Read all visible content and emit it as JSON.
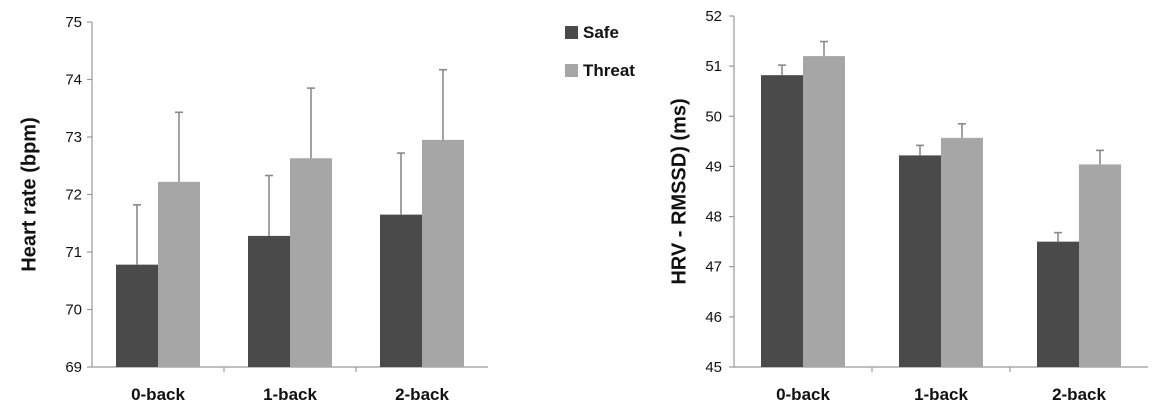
{
  "colors": {
    "safe": "#4a4a4a",
    "threat": "#a6a6a6",
    "axis": "#999999"
  },
  "legend": {
    "items": [
      "Safe",
      "Threat"
    ],
    "placement": "top-right of left chart"
  },
  "chart_data": [
    {
      "type": "bar",
      "ylabel": "Heart rate (bpm)",
      "categories": [
        "0-back",
        "1-back",
        "2-back"
      ],
      "ylim": [
        69,
        75
      ],
      "yticks": [
        69,
        70,
        71,
        72,
        73,
        74,
        75
      ],
      "grid": false,
      "series": [
        {
          "name": "Safe",
          "values": [
            70.78,
            71.28,
            71.65
          ],
          "errors": [
            1.04,
            1.05,
            1.07
          ]
        },
        {
          "name": "Threat",
          "values": [
            72.22,
            72.63,
            72.95
          ],
          "errors": [
            1.21,
            1.22,
            1.22
          ]
        }
      ]
    },
    {
      "type": "bar",
      "ylabel": "HRV - RMSSD) (ms)",
      "categories": [
        "0-back",
        "1-back",
        "2-back"
      ],
      "ylim": [
        45,
        52
      ],
      "yticks": [
        45,
        46,
        47,
        48,
        49,
        50,
        51,
        52
      ],
      "grid": false,
      "series": [
        {
          "name": "Safe",
          "values": [
            50.82,
            49.22,
            47.5
          ],
          "errors": [
            0.2,
            0.2,
            0.18
          ]
        },
        {
          "name": "Threat",
          "values": [
            51.2,
            49.57,
            49.04
          ],
          "errors": [
            0.29,
            0.28,
            0.28
          ]
        }
      ]
    }
  ]
}
